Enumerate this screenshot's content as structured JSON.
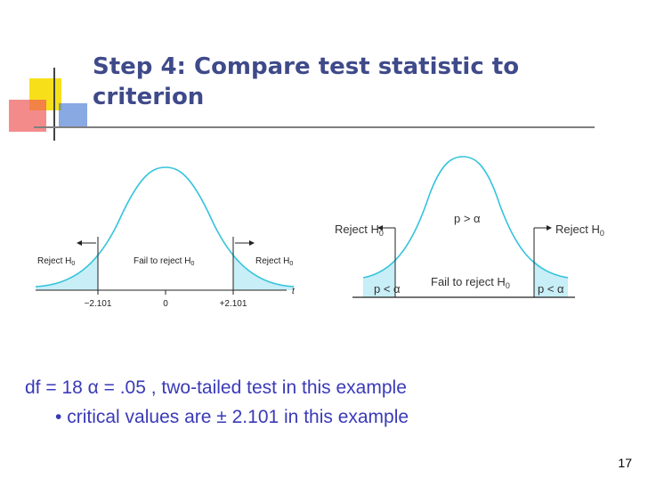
{
  "slide": {
    "title": "Step 4: Compare test statistic to criterion",
    "statement_line": "df = 18 α = .05 , two-tailed test in this example",
    "bullet_symbol": "•",
    "bullet_text": "critical values are ± 2.101 in this example",
    "page_number": "17"
  },
  "left_diagram": {
    "region_labels": {
      "reject_left": "Reject H",
      "reject_left_sub": "0",
      "fail": "Fail to reject H",
      "fail_sub": "0",
      "reject_right": "Reject H",
      "reject_right_sub": "0"
    },
    "axis_label": "t",
    "ticks": [
      "−2.101",
      "0",
      "+2.101"
    ]
  },
  "right_diagram": {
    "reject_left": "Reject H",
    "reject_left_sub": "0",
    "reject_right": "Reject H",
    "reject_right_sub": "0",
    "p_greater": "p > α",
    "fail": "Fail to reject H",
    "fail_sub": "0",
    "p_less_left": "p < α",
    "p_less_right": "p < α"
  },
  "colors": {
    "curve": "#35c4dc",
    "shade": "#c8eef7",
    "title": "#3f4a8a",
    "body_text": "#3a3ab8",
    "deco_yellow": "#f7e01a",
    "deco_red": "#f05a5a",
    "deco_blue": "#3a6fd0"
  }
}
